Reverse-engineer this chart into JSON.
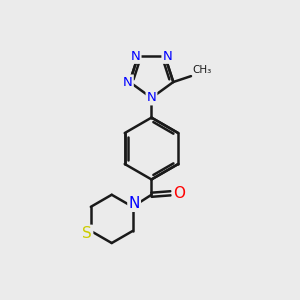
{
  "bg_color": "#ebebeb",
  "bond_color": "#1a1a1a",
  "N_color": "#0000ff",
  "O_color": "#ff0000",
  "S_color": "#cccc00",
  "line_width": 1.8,
  "figsize": [
    3.0,
    3.0
  ],
  "dpi": 100,
  "xlim": [
    0,
    10
  ],
  "ylim": [
    0,
    10
  ]
}
